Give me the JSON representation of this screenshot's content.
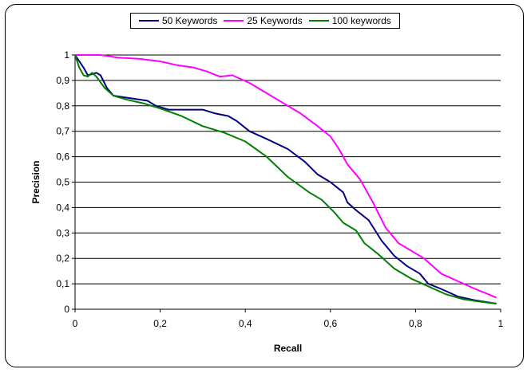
{
  "chart_data": {
    "type": "line",
    "title": "",
    "xlabel": "Recall",
    "ylabel": "Precision",
    "xlim": [
      0,
      1
    ],
    "ylim": [
      0,
      1
    ],
    "grid": "horizontal",
    "legend_position": "top",
    "x_ticks": [
      "0",
      "0,2",
      "0,4",
      "0,6",
      "0,8",
      "1"
    ],
    "y_ticks": [
      "0",
      "0,1",
      "0,2",
      "0,3",
      "0,4",
      "0,5",
      "0,6",
      "0,7",
      "0,8",
      "0,9",
      "1"
    ],
    "series": [
      {
        "name": "50 Keywords",
        "color": "#000080",
        "points": [
          [
            0.0,
            1.0
          ],
          [
            0.02,
            0.95
          ],
          [
            0.03,
            0.92
          ],
          [
            0.05,
            0.93
          ],
          [
            0.06,
            0.92
          ],
          [
            0.075,
            0.87
          ],
          [
            0.09,
            0.84
          ],
          [
            0.13,
            0.83
          ],
          [
            0.17,
            0.82
          ],
          [
            0.19,
            0.8
          ],
          [
            0.22,
            0.785
          ],
          [
            0.3,
            0.785
          ],
          [
            0.33,
            0.77
          ],
          [
            0.36,
            0.76
          ],
          [
            0.38,
            0.74
          ],
          [
            0.41,
            0.7
          ],
          [
            0.45,
            0.67
          ],
          [
            0.5,
            0.63
          ],
          [
            0.54,
            0.58
          ],
          [
            0.57,
            0.53
          ],
          [
            0.6,
            0.5
          ],
          [
            0.63,
            0.46
          ],
          [
            0.64,
            0.42
          ],
          [
            0.66,
            0.39
          ],
          [
            0.69,
            0.35
          ],
          [
            0.72,
            0.27
          ],
          [
            0.75,
            0.21
          ],
          [
            0.78,
            0.17
          ],
          [
            0.81,
            0.14
          ],
          [
            0.83,
            0.1
          ],
          [
            0.86,
            0.08
          ],
          [
            0.9,
            0.05
          ],
          [
            0.94,
            0.035
          ],
          [
            0.99,
            0.022
          ]
        ]
      },
      {
        "name": "25 Keywords",
        "color": "#FF00FF",
        "points": [
          [
            0.0,
            1.0
          ],
          [
            0.06,
            1.0
          ],
          [
            0.1,
            0.99
          ],
          [
            0.15,
            0.985
          ],
          [
            0.2,
            0.975
          ],
          [
            0.24,
            0.96
          ],
          [
            0.28,
            0.95
          ],
          [
            0.31,
            0.935
          ],
          [
            0.34,
            0.915
          ],
          [
            0.37,
            0.92
          ],
          [
            0.41,
            0.89
          ],
          [
            0.45,
            0.85
          ],
          [
            0.49,
            0.81
          ],
          [
            0.53,
            0.77
          ],
          [
            0.57,
            0.72
          ],
          [
            0.6,
            0.68
          ],
          [
            0.62,
            0.63
          ],
          [
            0.64,
            0.57
          ],
          [
            0.67,
            0.51
          ],
          [
            0.7,
            0.42
          ],
          [
            0.73,
            0.32
          ],
          [
            0.76,
            0.26
          ],
          [
            0.79,
            0.23
          ],
          [
            0.82,
            0.2
          ],
          [
            0.86,
            0.14
          ],
          [
            0.9,
            0.11
          ],
          [
            0.94,
            0.08
          ],
          [
            0.97,
            0.06
          ],
          [
            0.99,
            0.045
          ]
        ]
      },
      {
        "name": "100 keywords",
        "color": "#008000",
        "points": [
          [
            0.0,
            1.0
          ],
          [
            0.01,
            0.95
          ],
          [
            0.02,
            0.92
          ],
          [
            0.03,
            0.915
          ],
          [
            0.04,
            0.93
          ],
          [
            0.05,
            0.915
          ],
          [
            0.07,
            0.87
          ],
          [
            0.09,
            0.84
          ],
          [
            0.12,
            0.825
          ],
          [
            0.16,
            0.81
          ],
          [
            0.2,
            0.79
          ],
          [
            0.25,
            0.76
          ],
          [
            0.3,
            0.72
          ],
          [
            0.35,
            0.695
          ],
          [
            0.4,
            0.66
          ],
          [
            0.45,
            0.6
          ],
          [
            0.5,
            0.52
          ],
          [
            0.55,
            0.46
          ],
          [
            0.58,
            0.43
          ],
          [
            0.61,
            0.38
          ],
          [
            0.63,
            0.34
          ],
          [
            0.66,
            0.31
          ],
          [
            0.68,
            0.26
          ],
          [
            0.71,
            0.22
          ],
          [
            0.75,
            0.16
          ],
          [
            0.79,
            0.12
          ],
          [
            0.83,
            0.09
          ],
          [
            0.87,
            0.06
          ],
          [
            0.91,
            0.04
          ],
          [
            0.95,
            0.03
          ],
          [
            0.99,
            0.022
          ]
        ]
      }
    ]
  }
}
